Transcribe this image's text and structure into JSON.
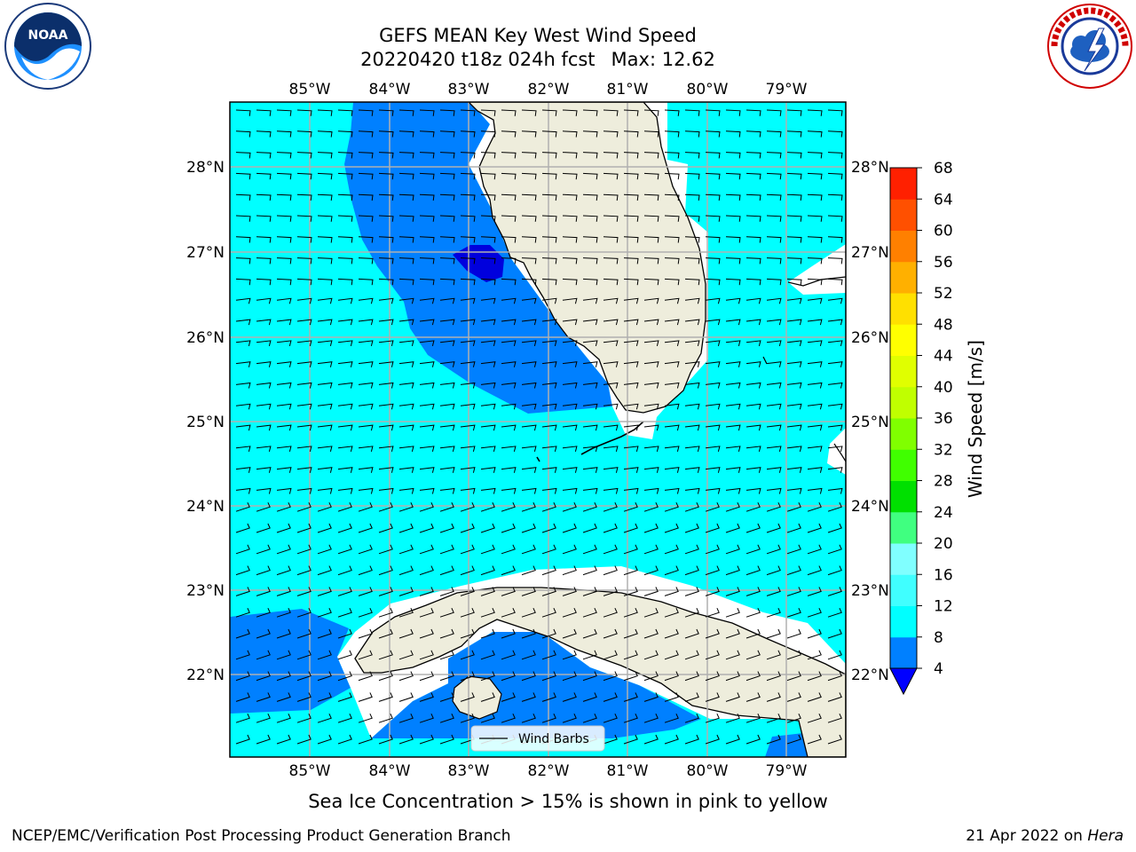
{
  "title": {
    "line1": "GEFS MEAN Key West Wind Speed",
    "line2_run": "20220420 t18z 024h fcst",
    "line2_max": "Max: 12.62"
  },
  "logos": {
    "left": {
      "icon": "noaa-logo",
      "text": "NOAA"
    },
    "right": {
      "icon": "nws-logo",
      "text": "NATIONAL WEATHER SERVICE"
    }
  },
  "map": {
    "lon_labels": [
      "85°W",
      "84°W",
      "83°W",
      "82°W",
      "81°W",
      "80°W",
      "79°W"
    ],
    "lat_labels": [
      "28°N",
      "27°N",
      "26°N",
      "25°N",
      "24°N",
      "23°N",
      "22°N"
    ],
    "legend_label": "Wind Barbs",
    "colors": {
      "ocean_cyan": "#00ffff",
      "ocean_blue": "#0080ff",
      "ocean_dark": "#0000dd",
      "land": "#eeeddc",
      "grid": "#b0b0b0"
    }
  },
  "colorbar": {
    "title": "Wind Speed [m/s]",
    "levels": [
      "4",
      "8",
      "12",
      "16",
      "20",
      "24",
      "28",
      "32",
      "36",
      "40",
      "44",
      "48",
      "52",
      "56",
      "60",
      "64",
      "68"
    ],
    "colors": [
      "#0080ff",
      "#00ffff",
      "#40ffff",
      "#80ffff",
      "#40ff80",
      "#00e000",
      "#40ff00",
      "#80ff00",
      "#c0ff00",
      "#e0ff00",
      "#ffff00",
      "#ffe000",
      "#ffb000",
      "#ff8000",
      "#ff5000",
      "#ff2000"
    ],
    "extend_color": "#0000ff"
  },
  "caption": "Sea Ice Concentration > 15% is shown in pink to yellow",
  "footer": {
    "left": "NCEP/EMC/Verification Post Processing Product Generation Branch",
    "date": "21 Apr 2022 on ",
    "host": "Hera"
  }
}
